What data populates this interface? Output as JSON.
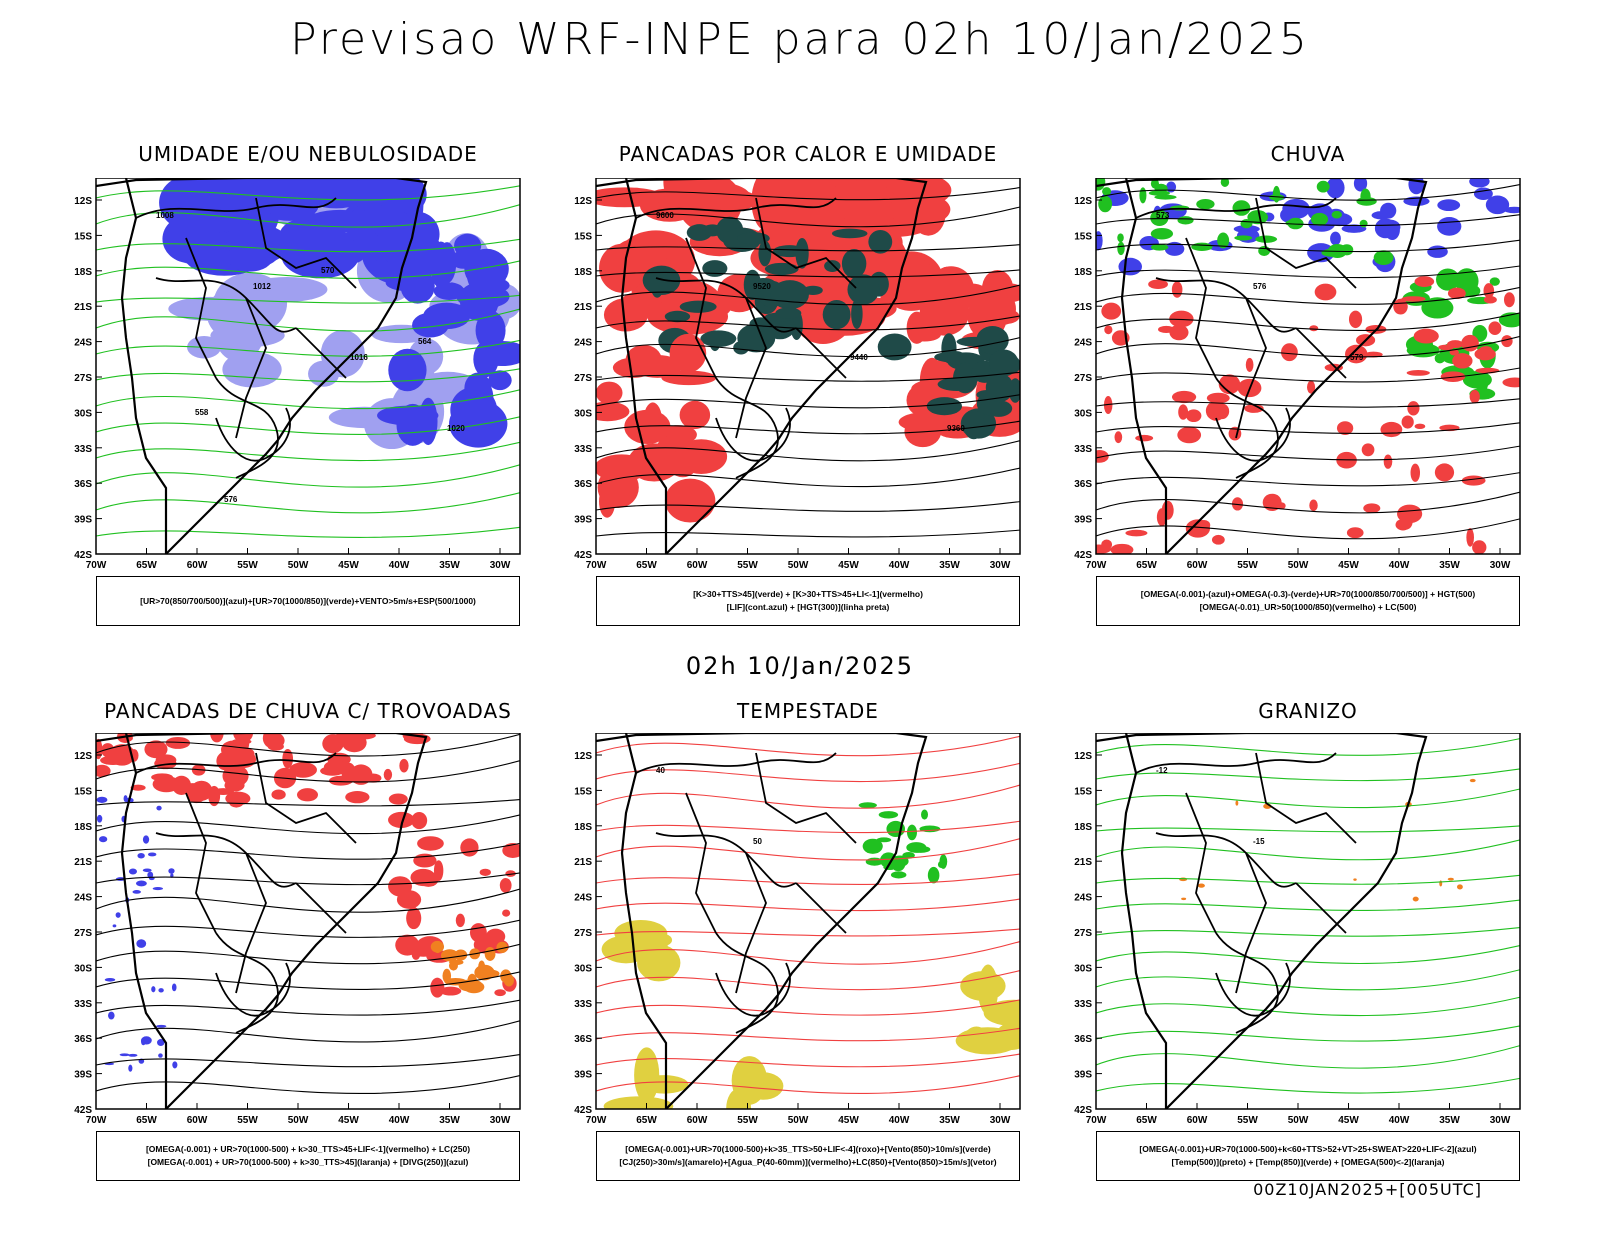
{
  "main_title": "Previsao WRF-INPE  para 02h 10/Jan/2025",
  "middle_label": "02h 10/Jan/2025",
  "footer_label": "00Z10JAN2025+[005UTC]",
  "lat_ticks": [
    "12S",
    "15S",
    "18S",
    "21S",
    "24S",
    "27S",
    "30S",
    "33S",
    "36S",
    "39S",
    "42S"
  ],
  "lon_ticks": [
    "70W",
    "65W",
    "60W",
    "55W",
    "50W",
    "45W",
    "40W",
    "35W",
    "30W"
  ],
  "colors": {
    "blue": "#4040e8",
    "lightblue": "#a0a0f0",
    "green": "#20c020",
    "red": "#f04040",
    "darkteal": "#1f4a48",
    "orange": "#f08020",
    "yellow": "#e0d040"
  },
  "panels": [
    {
      "title": "UMIDADE E/OU NEBULOSIDADE",
      "legend": [
        "[UR>70(850/700/500)](azul)+[UR>70(1000/850)](verde)+VENTO>5m/s+ESP(500/1000)"
      ],
      "contour_labels": [
        "1008",
        "1012",
        "1016",
        "1020",
        "576",
        "570",
        "564",
        "558"
      ]
    },
    {
      "title": "PANCADAS POR CALOR E UMIDADE",
      "legend": [
        "[K>30+TTS>45](verde)  +  [K>30+TTS>45+LI<-1](vermelho)",
        "[LIF](cont.azul)  +  [HGT(300)](linha preta)"
      ],
      "contour_labels": [
        "9600",
        "9520",
        "9440",
        "9360"
      ]
    },
    {
      "title": "CHUVA",
      "legend": [
        "[OMEGA(-0.001)-(azul)+OMEGA(-0.3)-(verde)+UR>70(1000/850/700/500)]  +  HGT(500)",
        "[OMEGA(-0.01)_UR>50(1000/850)(vermelho) + LC(500)"
      ],
      "contour_labels": [
        "573",
        "576",
        "579"
      ]
    },
    {
      "title": "PANCADAS DE CHUVA C/ TROVOADAS",
      "legend": [
        "[OMEGA(-0.001) + UR>70(1000-500) + k>30_TTS>45+LIF<-1](vermelho)  +  LC(250)",
        "[OMEGA(-0.001) + UR>70(1000-500) + k>30_TTS>45](laranja)  +  [DIVG(250)](azul)"
      ],
      "contour_labels": []
    },
    {
      "title": "TEMPESTADE",
      "legend": [
        "[OMEGA(-0.001)+UR>70(1000-500)+k>35_TTS>50+LIF<-4](roxo)+[Vento(850)>10m/s](verde)",
        "[CJ(250)>30m/s](amarelo)+[Agua_P(40-60mm)](vermelho)+LC(850)+[Vento(850)>15m/s](vetor)"
      ],
      "contour_labels": [
        "40",
        "50"
      ]
    },
    {
      "title": "GRANIZO",
      "legend": [
        "[OMEGA(-0.001)+UR>70(1000-500)+k<60+TTS>52+VT>25+SWEAT>220+LIF<-2](azul)",
        "[Temp(500)](preto)  +  [Temp(850)](verde)  +  [OMEGA(500)<-2](laranja)"
      ],
      "contour_labels": [
        "-12",
        "-15"
      ]
    }
  ]
}
